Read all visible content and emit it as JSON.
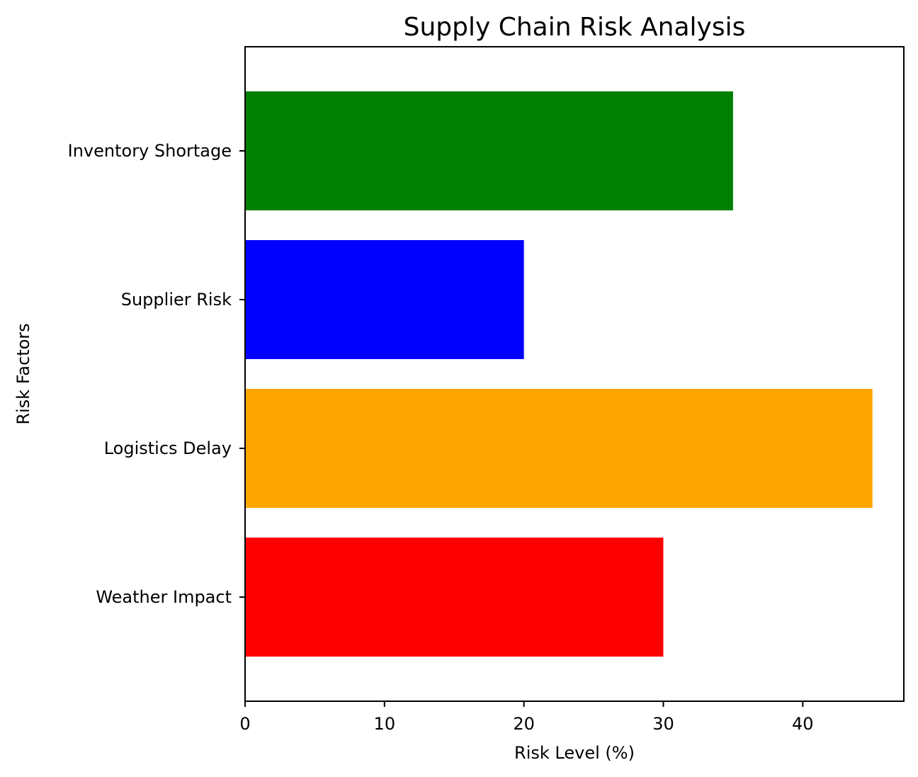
{
  "chart_data": {
    "type": "bar",
    "orientation": "horizontal",
    "title": "Supply Chain Risk Analysis",
    "xlabel": "Risk Level (%)",
    "ylabel": "Risk Factors",
    "categories": [
      "Weather Impact",
      "Logistics Delay",
      "Supplier Risk",
      "Inventory Shortage"
    ],
    "values": [
      30,
      45,
      20,
      35
    ],
    "colors": [
      "#ff0000",
      "#ffa500",
      "#0000ff",
      "#008000"
    ],
    "xlim": [
      0,
      47.25
    ],
    "xticks": [
      0,
      10,
      20,
      30,
      40
    ],
    "grid": false,
    "legend": "none"
  }
}
